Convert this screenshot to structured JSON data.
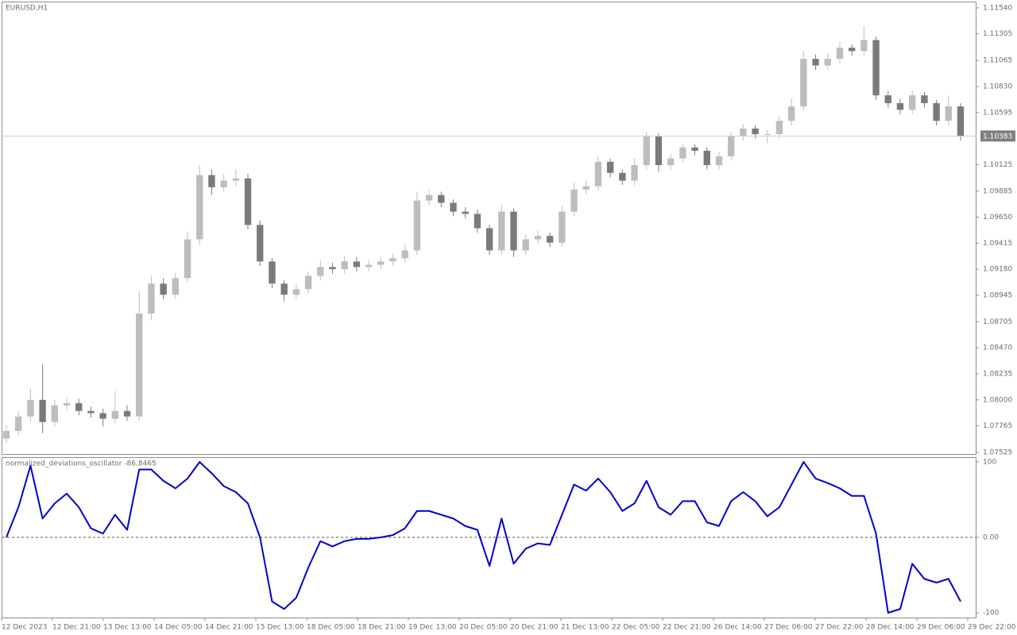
{
  "chart_data": [
    {
      "type": "candlestick",
      "title": "EURUSD,H1",
      "up_color": "#bdbdbd",
      "down_color": "#7a7a7a",
      "price_line_color": "#cfcfcf",
      "price_label_color": "#7f7f7f",
      "last_price": 1.10383,
      "ylim": [
        1.07511,
        1.11597
      ],
      "yticks": [
        {
          "value": 1.1154,
          "label": "1.11540"
        },
        {
          "value": 1.11305,
          "label": "1.11305"
        },
        {
          "value": 1.11065,
          "label": "1.11065"
        },
        {
          "value": 1.1083,
          "label": "1.10830"
        },
        {
          "value": 1.10595,
          "label": "1.10595"
        },
        {
          "value": 1.10125,
          "label": "1.10125"
        },
        {
          "value": 1.09885,
          "label": "1.09885"
        },
        {
          "value": 1.0965,
          "label": "1.09650"
        },
        {
          "value": 1.09415,
          "label": "1.09415"
        },
        {
          "value": 1.0918,
          "label": "1.09180"
        },
        {
          "value": 1.08945,
          "label": "1.08945"
        },
        {
          "value": 1.08705,
          "label": "1.08705"
        },
        {
          "value": 1.0847,
          "label": "1.08470"
        },
        {
          "value": 1.08235,
          "label": "1.08235"
        },
        {
          "value": 1.08,
          "label": "1.08000"
        },
        {
          "value": 1.07765,
          "label": "1.07765"
        },
        {
          "value": 1.07525,
          "label": "1.07525"
        }
      ],
      "open": [
        1.0765,
        1.0772,
        1.0785,
        1.08,
        1.078,
        1.0795,
        1.0797,
        1.079,
        1.0788,
        1.0783,
        1.079,
        1.0785,
        1.0878,
        1.0905,
        1.0895,
        1.091,
        1.0945,
        1.1003,
        1.0992,
        1.0998,
        1.1,
        1.0958,
        1.0925,
        1.0905,
        1.0895,
        1.09,
        1.0912,
        1.092,
        1.0918,
        1.0925,
        1.092,
        1.0922,
        1.0925,
        1.0928,
        1.0935,
        1.098,
        1.0985,
        1.0978,
        1.097,
        1.0968,
        1.0955,
        1.0935,
        1.097,
        1.0935,
        1.0945,
        1.0948,
        1.0942,
        1.097,
        1.099,
        1.0993,
        1.1015,
        1.1005,
        1.0998,
        1.1012,
        1.1038,
        1.1012,
        1.1018,
        1.1028,
        1.1025,
        1.1012,
        1.102,
        1.1038,
        1.1045,
        1.104,
        1.104,
        1.1052,
        1.1065,
        1.1108,
        1.1102,
        1.1108,
        1.1118,
        1.1115,
        1.1125,
        1.1075,
        1.1068,
        1.1062,
        1.1075,
        1.1068,
        1.1052,
        1.1065
      ],
      "high": [
        1.0777,
        1.079,
        1.081,
        1.0832,
        1.08,
        1.0802,
        1.0801,
        1.0794,
        1.0792,
        1.0808,
        1.0795,
        1.0898,
        1.0912,
        1.091,
        1.0915,
        1.0952,
        1.1012,
        1.1008,
        1.1004,
        1.1008,
        1.1004,
        1.0962,
        1.0928,
        1.0908,
        1.0904,
        1.0916,
        1.0926,
        1.0924,
        1.093,
        1.0929,
        1.0926,
        1.0929,
        1.0932,
        1.094,
        1.0988,
        1.099,
        1.0988,
        1.0981,
        1.0974,
        1.0972,
        1.0958,
        1.0976,
        1.0973,
        1.0949,
        1.0953,
        1.0951,
        1.0975,
        1.0996,
        1.0998,
        1.102,
        1.1018,
        1.1008,
        1.1018,
        1.1042,
        1.1041,
        1.1022,
        1.1031,
        1.1031,
        1.1028,
        1.1024,
        1.1042,
        1.1049,
        1.1048,
        1.1044,
        1.1056,
        1.1072,
        1.1115,
        1.1112,
        1.1113,
        1.1123,
        1.1121,
        1.1138,
        1.1128,
        1.1079,
        1.1072,
        1.108,
        1.1078,
        1.1071,
        1.1075,
        1.1068
      ],
      "low": [
        1.0761,
        1.0768,
        1.0781,
        1.077,
        1.0776,
        1.0791,
        1.0786,
        1.0784,
        1.0776,
        1.0779,
        1.0781,
        1.0781,
        1.0872,
        1.0891,
        1.0891,
        1.0906,
        1.094,
        1.0985,
        1.0988,
        1.0993,
        1.0954,
        1.0921,
        1.0901,
        1.0889,
        1.0891,
        1.0896,
        1.0908,
        1.0914,
        1.0914,
        1.0916,
        1.0916,
        1.0918,
        1.0921,
        1.0924,
        1.0931,
        1.0976,
        1.0974,
        1.0966,
        1.0964,
        1.0951,
        1.0931,
        1.0931,
        1.0929,
        1.0931,
        1.0941,
        1.0938,
        1.0938,
        1.0966,
        1.0986,
        1.0989,
        1.1001,
        1.0994,
        1.0994,
        1.1008,
        1.1006,
        1.1008,
        1.1014,
        1.1021,
        1.1008,
        1.1008,
        1.1016,
        1.1034,
        1.1036,
        1.1032,
        1.1036,
        1.1048,
        1.1061,
        1.1098,
        1.1098,
        1.1104,
        1.1111,
        1.1111,
        1.1071,
        1.1064,
        1.1058,
        1.1058,
        1.1064,
        1.1048,
        1.1048,
        1.1034
      ],
      "close": [
        1.0772,
        1.0785,
        1.08,
        1.078,
        1.0795,
        1.0797,
        1.079,
        1.0788,
        1.0783,
        1.079,
        1.0785,
        1.0878,
        1.0905,
        1.0895,
        1.091,
        1.0945,
        1.1003,
        1.0992,
        1.0998,
        1.1,
        1.0958,
        1.0925,
        1.0905,
        1.0895,
        1.09,
        1.0912,
        1.092,
        1.0918,
        1.0925,
        1.092,
        1.0922,
        1.0925,
        1.0928,
        1.0935,
        1.098,
        1.0985,
        1.0978,
        1.097,
        1.0968,
        1.0955,
        1.0935,
        1.097,
        1.0935,
        1.0945,
        1.0948,
        1.0942,
        1.097,
        1.099,
        1.0993,
        1.1015,
        1.1005,
        1.0998,
        1.1012,
        1.1038,
        1.1012,
        1.1018,
        1.1028,
        1.1025,
        1.1012,
        1.102,
        1.1038,
        1.1045,
        1.104,
        1.104,
        1.1052,
        1.1065,
        1.1108,
        1.1102,
        1.1108,
        1.1118,
        1.1115,
        1.1125,
        1.1075,
        1.1068,
        1.1062,
        1.1075,
        1.1068,
        1.1052,
        1.1065,
        1.1038
      ]
    },
    {
      "type": "line",
      "title": "normalized_deviations_oscillator -86.8465",
      "color": "#0000cc",
      "zero_line": true,
      "ylim": [
        -106.3,
        106.3
      ],
      "yticks": [
        100,
        {
          "value": 0,
          "label": "0.00"
        },
        -100
      ],
      "values": [
        0,
        40,
        95,
        25,
        45,
        58,
        40,
        12,
        5,
        30,
        10,
        90,
        90,
        75,
        65,
        78,
        100,
        85,
        68,
        60,
        45,
        0,
        -85,
        -95,
        -80,
        -40,
        -5,
        -12,
        -5,
        -2,
        -2,
        0,
        3,
        12,
        35,
        35,
        30,
        25,
        15,
        10,
        -38,
        25,
        -35,
        -15,
        -8,
        -10,
        30,
        70,
        62,
        78,
        60,
        35,
        45,
        75,
        40,
        30,
        48,
        48,
        20,
        15,
        48,
        60,
        48,
        28,
        40,
        70,
        100,
        78,
        72,
        65,
        55,
        55,
        5,
        -100,
        -95,
        -35,
        -55,
        -60,
        -55,
        -85
      ],
      "time_labels": [
        "12 Dec 2023",
        "12 Dec 21:00",
        "13 Dec 13:00",
        "14 Dec 05:00",
        "14 Dec 21:00",
        "15 Dec 13:00",
        "18 Dec 05:00",
        "18 Dec 21:00",
        "19 Dec 13:00",
        "20 Dec 05:00",
        "20 Dec 21:00",
        "21 Dec 13:00",
        "22 Dec 05:00",
        "22 Dec 21:00",
        "26 Dec 14:00",
        "27 Dec 06:00",
        "27 Dec 22:00",
        "28 Dec 14:00",
        "29 Dec 06:00",
        "29 Dec 22:00"
      ]
    }
  ]
}
